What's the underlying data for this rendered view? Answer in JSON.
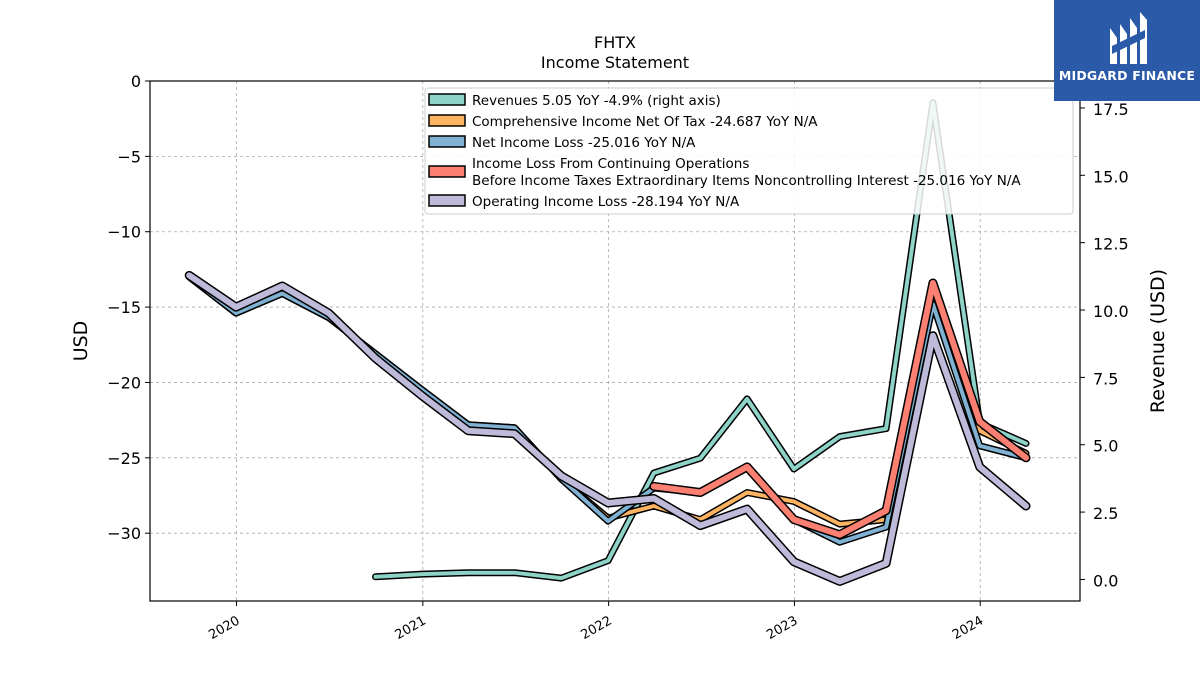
{
  "brand": {
    "name": "MIDGARD FINANCE",
    "color": "#2a5aa8"
  },
  "chart_data": {
    "type": "line",
    "title": "FHTX",
    "subtitle": "Income Statement",
    "ylabel": "USD",
    "ylabel_right": "Revenue (USD)",
    "ylim": [
      -34.5,
      0
    ],
    "ylim_right": [
      -0.8,
      18.5
    ],
    "xlim": [
      "2019-07-15",
      "2024-07-15"
    ],
    "yticks": [
      "0",
      "−5",
      "−10",
      "−15",
      "−20",
      "−25",
      "−30"
    ],
    "yticks_right": [
      "0.0",
      "2.5",
      "5.0",
      "7.5",
      "10.0",
      "12.5",
      "15.0",
      "17.5"
    ],
    "xticks": [
      "2020",
      "2021",
      "2022",
      "2023",
      "2024"
    ],
    "grid": true,
    "legend_position": "top-right",
    "series": [
      {
        "name": "Revenues  5.05 YoY -4.9% (right axis)",
        "color": "#8dd3c7",
        "axis": "right",
        "width": 4,
        "x": [
          "2020-09-30",
          "2020-12-31",
          "2021-03-31",
          "2021-06-30",
          "2021-09-30",
          "2021-12-31",
          "2022-03-31",
          "2022-06-30",
          "2022-09-30",
          "2022-12-31",
          "2023-03-31",
          "2023-06-30",
          "2023-09-30",
          "2023-12-31",
          "2024-03-31"
        ],
        "values": [
          0.1,
          0.2,
          0.25,
          0.25,
          0.05,
          0.7,
          3.95,
          4.5,
          6.7,
          4.1,
          5.3,
          5.6,
          17.7,
          5.8,
          5.05
        ]
      },
      {
        "name": "Comprehensive Income Net Of Tax  -24.687 YoY N/A",
        "color": "#fdb462",
        "axis": "left",
        "width": 4,
        "x": [
          "2019-09-30",
          "2019-12-31",
          "2020-03-31",
          "2020-06-30",
          "2020-09-30",
          "2020-12-31",
          "2021-03-31",
          "2021-06-30",
          "2021-09-30",
          "2021-12-31",
          "2022-03-31",
          "2022-06-30",
          "2022-09-30",
          "2022-12-31",
          "2023-03-31",
          "2023-06-30",
          "2023-09-30",
          "2023-12-31",
          "2024-03-31"
        ],
        "values": [
          -13.0,
          -15.4,
          -14.1,
          -15.7,
          -18.1,
          -20.5,
          -22.8,
          -23.0,
          -26.4,
          -29.0,
          -28.2,
          -29.1,
          -27.3,
          -27.9,
          -29.4,
          -29.1,
          -14.3,
          -23.2,
          -24.7
        ]
      },
      {
        "name": "Net Income Loss  -25.016 YoY N/A",
        "color": "#80b1d3",
        "axis": "left",
        "width": 4,
        "x": [
          "2019-09-30",
          "2019-12-31",
          "2020-03-31",
          "2020-06-30",
          "2020-09-30",
          "2020-12-31",
          "2021-03-31",
          "2021-06-30",
          "2021-09-30",
          "2021-12-31",
          "2022-03-31",
          "2022-06-30",
          "2022-09-30",
          "2022-12-31",
          "2023-03-31",
          "2023-06-30",
          "2023-09-30",
          "2023-12-31",
          "2024-03-31"
        ],
        "values": [
          -13.0,
          -15.4,
          -14.1,
          -15.7,
          -18.1,
          -20.5,
          -22.8,
          -23.0,
          -26.4,
          -29.2,
          -27.0,
          -27.3,
          -25.6,
          -29.1,
          -30.6,
          -29.6,
          -14.8,
          -24.2,
          -25.0
        ]
      },
      {
        "name": "Income Loss From Continuing Operations\nBefore Income Taxes Extraordinary Items Noncontrolling Interest  -25.016 YoY N/A",
        "color": "#fb8072",
        "axis": "left",
        "width": 6,
        "x": [
          "2022-03-31",
          "2022-06-30",
          "2022-09-30",
          "2022-12-31",
          "2023-03-31",
          "2023-06-30",
          "2023-09-30",
          "2023-12-31",
          "2024-03-31"
        ],
        "values": [
          -26.9,
          -27.3,
          -25.6,
          -29.1,
          -30.1,
          -28.5,
          -13.4,
          -22.6,
          -25.0
        ]
      },
      {
        "name": "Operating Income Loss  -28.194 YoY N/A",
        "color": "#bebada",
        "axis": "left",
        "width": 6,
        "x": [
          "2019-09-30",
          "2019-12-31",
          "2020-03-31",
          "2020-06-30",
          "2020-09-30",
          "2020-12-31",
          "2021-03-31",
          "2021-06-30",
          "2021-09-30",
          "2021-12-31",
          "2022-03-31",
          "2022-06-30",
          "2022-09-30",
          "2022-12-31",
          "2023-03-31",
          "2023-06-30",
          "2023-09-30",
          "2023-12-31",
          "2024-03-31"
        ],
        "values": [
          -12.9,
          -15.0,
          -13.6,
          -15.4,
          -18.4,
          -20.9,
          -23.2,
          -23.4,
          -26.2,
          -28.0,
          -27.7,
          -29.5,
          -28.4,
          -31.9,
          -33.2,
          -32.0,
          -16.9,
          -25.6,
          -28.2
        ]
      }
    ]
  }
}
